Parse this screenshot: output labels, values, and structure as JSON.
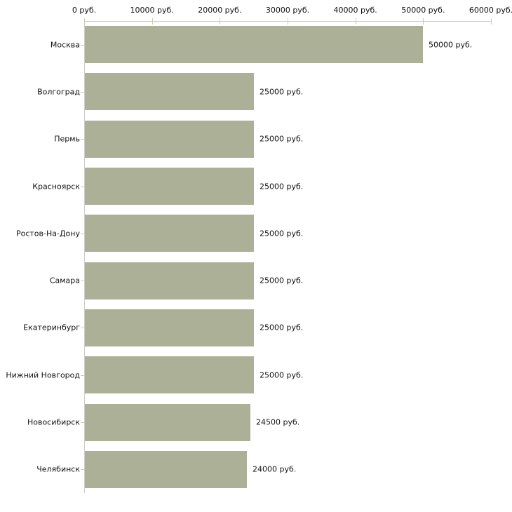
{
  "chart_data": {
    "type": "bar",
    "orientation": "horizontal",
    "title": "",
    "xlabel": "",
    "ylabel": "",
    "legend": false,
    "grid": false,
    "categories": [
      "Москва",
      "Волгоград",
      "Пермь",
      "Красноярск",
      "Ростов-На-Дону",
      "Самара",
      "Екатеринбург",
      "Нижний Новгород",
      "Новосибирск",
      "Челябинск"
    ],
    "values": [
      50000,
      25000,
      25000,
      25000,
      25000,
      25000,
      25000,
      25000,
      24500,
      24000
    ],
    "value_labels": [
      "50000 руб.",
      "25000 руб.",
      "25000 руб.",
      "25000 руб.",
      "25000 руб.",
      "25000 руб.",
      "25000 руб.",
      "25000 руб.",
      "24500 руб.",
      "24000 руб."
    ],
    "x_axis": {
      "position": "top",
      "min": 0,
      "max": 60000,
      "tick_values": [
        0,
        10000,
        20000,
        30000,
        40000,
        50000,
        60000
      ],
      "tick_labels": [
        "0 руб.",
        "10000 руб.",
        "20000 руб.",
        "30000 руб.",
        "40000 руб.",
        "50000 руб.",
        "60000 руб."
      ]
    },
    "colors": {
      "bar": "#abb096",
      "axis_line": "#cccccc",
      "tick": "#ccccaa",
      "text": "#111111",
      "background": "#ffffff"
    }
  }
}
